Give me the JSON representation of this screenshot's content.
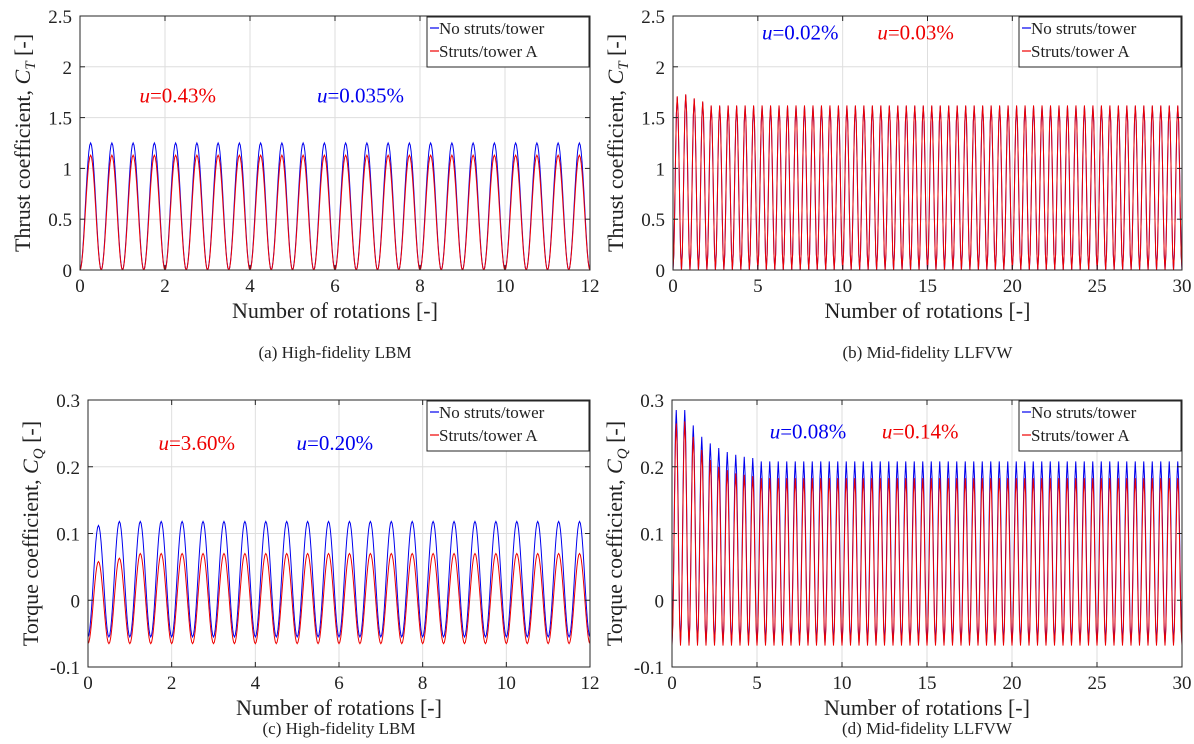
{
  "legend_entries": [
    "No struts/tower",
    "Struts/tower A"
  ],
  "colors": {
    "no_struts": "#0000ee",
    "struts": "#ee0000",
    "axis": "#262626",
    "grid": "#dedede"
  },
  "chart_data": [
    {
      "type": "line",
      "panel": "a",
      "caption": "(a)  High-fidelity LBM",
      "xlabel": "Number of rotations [-]",
      "ylabel_text": "Thrust coefficient, ",
      "ylabel_sym": "C",
      "ylabel_sub": "T",
      "ylabel_unit": "[-]",
      "xlim": [
        0,
        12
      ],
      "ylim": [
        0,
        2.5
      ],
      "xticks": [
        0,
        2,
        4,
        6,
        8,
        10,
        12
      ],
      "xtick_labels": [
        "0",
        "2",
        "4",
        "6",
        "8",
        "10",
        "12"
      ],
      "yticks": [
        0,
        0.5,
        1,
        1.5,
        2,
        2.5
      ],
      "ytick_labels": [
        "0",
        "0.5",
        "1",
        "1.5",
        "2",
        "2.5"
      ],
      "grid": true,
      "legend": "top-right",
      "periods_per_rotation": 2,
      "annotations": [
        {
          "sym": "u",
          "text": "=0.43%",
          "color": "#ee0000",
          "x": 2.3,
          "y": 1.65
        },
        {
          "sym": "u",
          "text": "=0.035%",
          "color": "#0000ee",
          "x": 6.6,
          "y": 1.65
        }
      ],
      "series": [
        {
          "name": "No struts/tower",
          "color": "#0000ee",
          "min": 0.0,
          "max": 1.25,
          "transient_peaks": []
        },
        {
          "name": "Struts/tower A",
          "color": "#ee0000",
          "min": 0.0,
          "max": 1.13,
          "transient_peaks": []
        }
      ]
    },
    {
      "type": "line",
      "panel": "b",
      "caption": "(b)  Mid-fidelity LLFVW",
      "xlabel": "Number of rotations [-]",
      "ylabel_text": "Thrust coefficient, ",
      "ylabel_sym": "C",
      "ylabel_sub": "T",
      "ylabel_unit": "[-]",
      "xlim": [
        0,
        30
      ],
      "ylim": [
        0,
        2.5
      ],
      "xticks": [
        0,
        5,
        10,
        15,
        20,
        25,
        30
      ],
      "xtick_labels": [
        "0",
        "5",
        "10",
        "15",
        "20",
        "25",
        "30"
      ],
      "yticks": [
        0,
        0.5,
        1,
        1.5,
        2,
        2.5
      ],
      "ytick_labels": [
        "0",
        "0.5",
        "1",
        "1.5",
        "2",
        "2.5"
      ],
      "grid": true,
      "legend": "top-right",
      "periods_per_rotation": 2,
      "annotations": [
        {
          "sym": "u",
          "text": "=0.02%",
          "color": "#0000ee",
          "x": 7.5,
          "y": 2.27
        },
        {
          "sym": "u",
          "text": "=0.03%",
          "color": "#ee0000",
          "x": 14.3,
          "y": 2.27
        }
      ],
      "series": [
        {
          "name": "No struts/tower",
          "color": "#0000ee",
          "min": 0.0,
          "max": 1.61,
          "transient_peaks": [
            1.7,
            1.72,
            1.68,
            1.65
          ]
        },
        {
          "name": "Struts/tower A",
          "color": "#ee0000",
          "min": 0.0,
          "max": 1.62,
          "transient_peaks": [
            1.71,
            1.73,
            1.69,
            1.66
          ]
        }
      ]
    },
    {
      "type": "line",
      "panel": "c",
      "caption": "(c)  High-fidelity LBM",
      "xlabel": "Number of rotations [-]",
      "ylabel_text": "Torque coefficient, ",
      "ylabel_sym": "C",
      "ylabel_sub": "Q",
      "ylabel_unit": "[-]",
      "xlim": [
        0,
        12
      ],
      "ylim": [
        -0.1,
        0.3
      ],
      "xticks": [
        0,
        2,
        4,
        6,
        8,
        10,
        12
      ],
      "xtick_labels": [
        "0",
        "2",
        "4",
        "6",
        "8",
        "10",
        "12"
      ],
      "yticks": [
        -0.1,
        0,
        0.1,
        0.2,
        0.3
      ],
      "ytick_labels": [
        "-0.1",
        "0",
        "0.1",
        "0.2",
        "0.3"
      ],
      "grid": true,
      "legend": "top-right",
      "periods_per_rotation": 2,
      "annotations": [
        {
          "sym": "u",
          "text": "=3.60%",
          "color": "#ee0000",
          "x": 2.6,
          "y": 0.225
        },
        {
          "sym": "u",
          "text": "=0.20%",
          "color": "#0000ee",
          "x": 5.9,
          "y": 0.225
        }
      ],
      "series": [
        {
          "name": "No struts/tower",
          "color": "#0000ee",
          "min": -0.055,
          "max": 0.118,
          "transient_peaks": [
            0.112
          ]
        },
        {
          "name": "Struts/tower A",
          "color": "#ee0000",
          "min": -0.065,
          "max": 0.07,
          "transient_peaks": [
            0.058,
            0.063
          ]
        }
      ]
    },
    {
      "type": "line",
      "panel": "d",
      "caption": "(d)  Mid-fidelity LLFVW",
      "xlabel": "Number of rotations [-]",
      "ylabel_text": "Torque coefficient, ",
      "ylabel_sym": "C",
      "ylabel_sub": "Q",
      "ylabel_unit": "[-]",
      "xlim": [
        0,
        30
      ],
      "ylim": [
        -0.1,
        0.3
      ],
      "xticks": [
        0,
        5,
        10,
        15,
        20,
        25,
        30
      ],
      "xtick_labels": [
        "0",
        "5",
        "10",
        "15",
        "20",
        "25",
        "30"
      ],
      "yticks": [
        -0.1,
        0,
        0.1,
        0.2,
        0.3
      ],
      "ytick_labels": [
        "-0.1",
        "0",
        "0.1",
        "0.2",
        "0.3"
      ],
      "grid": true,
      "legend": "top-right",
      "periods_per_rotation": 2,
      "annotations": [
        {
          "sym": "u",
          "text": "=0.08%",
          "color": "#0000ee",
          "x": 8.0,
          "y": 0.242
        },
        {
          "sym": "u",
          "text": "=0.14%",
          "color": "#ee0000",
          "x": 14.6,
          "y": 0.242
        }
      ],
      "series": [
        {
          "name": "No struts/tower",
          "color": "#0000ee",
          "min": -0.065,
          "max": 0.208,
          "transient_peaks": [
            0.285,
            0.285,
            0.262,
            0.245,
            0.235,
            0.228,
            0.222,
            0.218,
            0.215,
            0.213
          ]
        },
        {
          "name": "Struts/tower A",
          "color": "#ee0000",
          "min": -0.068,
          "max": 0.183,
          "transient_peaks": [
            0.265,
            0.268,
            0.245,
            0.225,
            0.21,
            0.2,
            0.195,
            0.19,
            0.188,
            0.186
          ]
        }
      ]
    }
  ]
}
